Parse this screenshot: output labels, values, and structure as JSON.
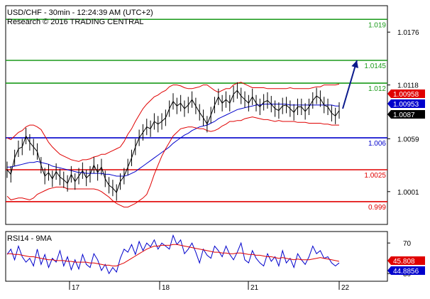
{
  "header": {
    "line1": "USD/CHF - 30min - 12:24:39 AM (UTC+2)",
    "line2": "Research © 2016 TRADING CENTRAL"
  },
  "chart_data": [
    {
      "type": "line",
      "instrument": "USD/CHF",
      "timeframe": "30min",
      "ylim": [
        0.9965,
        1.0205
      ],
      "y_ticks": [
        "1.0176",
        "1.0118",
        "1.0059",
        "1.0001"
      ],
      "y_tick_values": [
        1.0176,
        1.0118,
        1.0059,
        1.0001
      ],
      "x_ticks": [
        "17",
        "18",
        "21",
        "22"
      ],
      "levels": [
        {
          "label": "1.019",
          "value": 1.019,
          "color": "#1a9a1a"
        },
        {
          "label": "1.0145",
          "value": 1.0145,
          "color": "#1a9a1a"
        },
        {
          "label": "1.012",
          "value": 1.012,
          "color": "#1a9a1a"
        },
        {
          "label": "1.006",
          "value": 1.006,
          "color": "#0000cc"
        },
        {
          "label": "1.0025",
          "value": 1.0025,
          "color": "#e00000"
        },
        {
          "label": "0.999",
          "value": 0.999,
          "color": "#e00000"
        }
      ],
      "price_tags": [
        {
          "label": "1.00958",
          "value": 1.00958,
          "color": "#e00000"
        },
        {
          "label": "1.00953",
          "value": 1.00953,
          "color": "#0000cc"
        },
        {
          "label": "1.0087",
          "value": 1.0087,
          "color": "#000000"
        }
      ],
      "series": [
        {
          "color": "#000000",
          "values": [
            1.0025,
            1.002,
            1.0038,
            1.0048,
            1.005,
            1.0062,
            1.0055,
            1.005,
            1.0045,
            1.003,
            1.0018,
            1.0022,
            1.0015,
            1.0023,
            1.0017,
            1.0014,
            1.001,
            1.002,
            1.0012,
            1.0018,
            1.0024,
            1.0016,
            1.002,
            1.003,
            1.0022,
            1.0028,
            1.0015,
            1.0008,
            1.0005,
            1.0,
            1.0012,
            1.0018,
            1.0028,
            1.0038,
            1.005,
            1.006,
            1.0066,
            1.0072,
            1.007,
            1.0078,
            1.0075,
            1.0078,
            1.0082,
            1.0092,
            1.01,
            1.0095,
            1.0098,
            1.0092,
            1.0096,
            1.0102,
            1.0095,
            1.0088,
            1.0082,
            1.0075,
            1.0085,
            1.0096,
            1.0105,
            1.0098,
            1.0102,
            1.0098,
            1.0108,
            1.0112,
            1.0106,
            1.0102,
            1.0098,
            1.0105,
            1.0098,
            1.0094,
            1.0099,
            1.0101,
            1.0097,
            1.0092,
            1.009,
            1.0095,
            1.0096,
            1.0092,
            1.0088,
            1.0094,
            1.0094,
            1.0089,
            1.0094,
            1.0101,
            1.0106,
            1.0103,
            1.0096,
            1.0094,
            1.0087,
            1.0084,
            1.009
          ]
        },
        {
          "color": "#0000cc",
          "values": [
            1.0028,
            1.0028,
            1.0029,
            1.003,
            1.0031,
            1.0032,
            1.0033,
            1.0033,
            1.0034,
            1.0033,
            1.0032,
            1.0031,
            1.0029,
            1.0028,
            1.0027,
            1.0026,
            1.0025,
            1.0024,
            1.0023,
            1.0022,
            1.0022,
            1.0021,
            1.0021,
            1.0021,
            1.0021,
            1.0021,
            1.002,
            1.002,
            1.0019,
            1.0018,
            1.0018,
            1.0018,
            1.0019,
            1.0021,
            1.0023,
            1.0026,
            1.0029,
            1.0032,
            1.0035,
            1.0038,
            1.0041,
            1.0044,
            1.0047,
            1.005,
            1.0054,
            1.0057,
            1.006,
            1.0063,
            1.0065,
            1.0068,
            1.007,
            1.0072,
            1.0073,
            1.0074,
            1.0076,
            1.0078,
            1.0081,
            1.0083,
            1.0085,
            1.0087,
            1.0089,
            1.0091,
            1.0092,
            1.0093,
            1.0094,
            1.0095,
            1.0096,
            1.0096,
            1.0097,
            1.0097,
            1.0097,
            1.0097,
            1.0097,
            1.0097,
            1.0097,
            1.0096,
            1.0096,
            1.0096,
            1.0096,
            1.0096,
            1.0096,
            1.0096,
            1.0096,
            1.0096,
            1.0096,
            1.0096,
            1.0096,
            1.0095,
            1.0095
          ]
        },
        {
          "color": "#e00000",
          "values": [
            1.006,
            1.0058,
            1.0062,
            1.0066,
            1.0068,
            1.0072,
            1.0074,
            1.0074,
            1.0072,
            1.0069,
            1.0062,
            1.0055,
            1.005,
            1.0046,
            1.0042,
            1.004,
            1.0038,
            1.0036,
            1.0035,
            1.0034,
            1.0036,
            1.0036,
            1.0037,
            1.0039,
            1.004,
            1.0042,
            1.0042,
            1.0044,
            1.0046,
            1.0048,
            1.005,
            1.0056,
            1.0064,
            1.007,
            1.0078,
            1.0085,
            1.0092,
            1.0097,
            1.0101,
            1.0105,
            1.0107,
            1.011,
            1.0112,
            1.0116,
            1.0118,
            1.0118,
            1.0117,
            1.0115,
            1.0114,
            1.0114,
            1.0115,
            1.0116,
            1.0118,
            1.0118,
            1.0115,
            1.0112,
            1.011,
            1.0112,
            1.0114,
            1.0114,
            1.0118,
            1.012,
            1.0121,
            1.0119,
            1.0117,
            1.0115,
            1.0115,
            1.0115,
            1.0115,
            1.0114,
            1.0114,
            1.0114,
            1.0114,
            1.0114,
            1.0114,
            1.0115,
            1.0114,
            1.0114,
            1.0114,
            1.0114,
            1.0114,
            1.0115,
            1.0116,
            1.0116,
            1.0118,
            1.0118,
            1.0118,
            1.0118,
            1.0119
          ]
        },
        {
          "color": "#e00000",
          "values": [
            0.9996,
            0.9992,
            0.9993,
            0.9994,
            0.9994,
            0.9993,
            0.9992,
            0.9994,
            0.9998,
            1.0,
            1.0002,
            1.0004,
            1.0005,
            1.0006,
            1.0006,
            1.0006,
            1.0004,
            1.0004,
            1.0004,
            1.0004,
            1.0004,
            1.0004,
            1.0004,
            1.0004,
            1.0003,
            1.0001,
            0.9998,
            0.9995,
            0.9991,
            0.9988,
            0.9986,
            0.9984,
            0.9984,
            0.9986,
            0.9988,
            0.9991,
            0.9994,
            0.9998,
            1.0008,
            1.002,
            1.003,
            1.004,
            1.0048,
            1.0055,
            1.0062,
            1.0066,
            1.007,
            1.0071,
            1.0072,
            1.0072,
            1.0071,
            1.007,
            1.007,
            1.0068,
            1.0067,
            1.0068,
            1.007,
            1.0073,
            1.0075,
            1.0078,
            1.0078,
            1.0079,
            1.0079,
            1.0081,
            1.0082,
            1.0083,
            1.0082,
            1.0081,
            1.008,
            1.008,
            1.0079,
            1.0078,
            1.0079,
            1.0078,
            1.0078,
            1.0078,
            1.0078,
            1.0077,
            1.0077,
            1.0077,
            1.0076,
            1.0076,
            1.0076,
            1.0076,
            1.0075,
            1.0075,
            1.0074,
            1.0074,
            1.0074
          ]
        }
      ],
      "annotations": [
        "projection-arrow"
      ]
    },
    {
      "type": "line",
      "title": "RSI14 - 9MA",
      "ylim": [
        20,
        85
      ],
      "y_ticks": [
        "70",
        "30"
      ],
      "y_tick_values": [
        70,
        30
      ],
      "price_tags": [
        {
          "label": "45.808",
          "value": 45.808,
          "color": "#e00000"
        },
        {
          "label": "44.8856",
          "value": 44.8856,
          "color": "#0000cc"
        }
      ],
      "series": [
        {
          "color": "#0000cc",
          "values": [
            55,
            62,
            48,
            66,
            52,
            45,
            50,
            40,
            62,
            42,
            55,
            38,
            50,
            45,
            60,
            40,
            52,
            35,
            48,
            36,
            55,
            42,
            38,
            56,
            48,
            34,
            42,
            30,
            38,
            32,
            50,
            62,
            58,
            68,
            55,
            72,
            60,
            70,
            65,
            74,
            62,
            70,
            66,
            62,
            80,
            68,
            74,
            56,
            62,
            70,
            58,
            44,
            62,
            54,
            50,
            66,
            60,
            52,
            66,
            55,
            48,
            58,
            70,
            48,
            44,
            60,
            50,
            44,
            40,
            56,
            46,
            52,
            40,
            60,
            44,
            50,
            38,
            56,
            48,
            42,
            52,
            66,
            56,
            60,
            50,
            52,
            44,
            40,
            44
          ]
        },
        {
          "color": "#e00000",
          "values": [
            56,
            56,
            55,
            55,
            54,
            53,
            52,
            52,
            51,
            50,
            49,
            48,
            48,
            47,
            47,
            47,
            46,
            46,
            45,
            45,
            45,
            45,
            44,
            44,
            43,
            42,
            41,
            41,
            40,
            40,
            42,
            44,
            47,
            50,
            53,
            56,
            59,
            62,
            64,
            66,
            66,
            67,
            67,
            67,
            68,
            68,
            67,
            66,
            65,
            64,
            63,
            62,
            61,
            60,
            59,
            58,
            58,
            57,
            57,
            56,
            56,
            57,
            57,
            56,
            55,
            55,
            54,
            54,
            53,
            52,
            52,
            51,
            50,
            51,
            50,
            49,
            48,
            49,
            48,
            48,
            48,
            49,
            50,
            51,
            50,
            49,
            48,
            47,
            46
          ]
        }
      ]
    }
  ]
}
